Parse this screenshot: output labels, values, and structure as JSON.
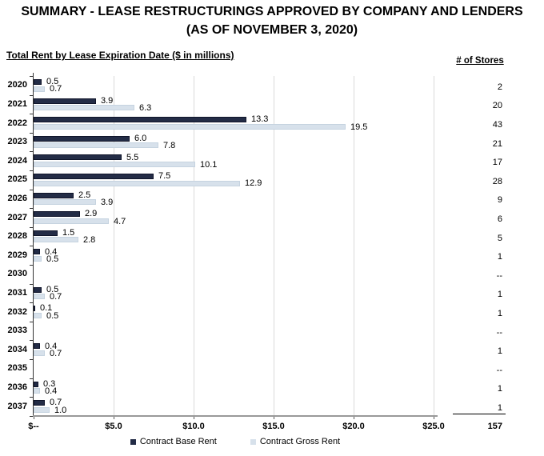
{
  "title": {
    "line1": "SUMMARY - LEASE RESTRUCTURINGS APPROVED BY COMPANY AND LENDERS",
    "line2": "(AS OF NOVEMBER 3, 2020)"
  },
  "chart_data": {
    "type": "bar",
    "orientation": "horizontal",
    "title": "Total Rent by Lease Expiration Date ($ in millions)",
    "stores_header": "# of Stores",
    "categories": [
      "2020",
      "2021",
      "2022",
      "2023",
      "2024",
      "2025",
      "2026",
      "2027",
      "2028",
      "2029",
      "2030",
      "2031",
      "2032",
      "2033",
      "2034",
      "2035",
      "2036",
      "2037"
    ],
    "series": [
      {
        "name": "Contract Base Rent",
        "color": "#232C46",
        "border_color": "#10152A",
        "values": [
          0.5,
          3.9,
          13.3,
          6.0,
          5.5,
          7.5,
          2.5,
          2.9,
          1.5,
          0.4,
          null,
          0.5,
          0.1,
          null,
          0.4,
          null,
          0.3,
          0.7
        ]
      },
      {
        "name": "Contract Gross Rent",
        "color": "#D7E1EB",
        "border_color": "#C6D3E0",
        "values": [
          0.7,
          6.3,
          19.5,
          7.8,
          10.1,
          12.9,
          3.9,
          4.7,
          2.8,
          0.5,
          null,
          0.7,
          0.5,
          null,
          0.7,
          null,
          0.4,
          1.0
        ]
      }
    ],
    "stores": [
      "2",
      "20",
      "43",
      "21",
      "17",
      "28",
      "9",
      "6",
      "5",
      "1",
      "--",
      "1",
      "1",
      "--",
      "1",
      "--",
      "1",
      "1"
    ],
    "stores_total": "157",
    "x_axis_ticks": [
      {
        "value": 0,
        "label": "$--"
      },
      {
        "value": 5,
        "label": "$5.0"
      },
      {
        "value": 10,
        "label": "$10.0"
      },
      {
        "value": 15,
        "label": "$15.0"
      },
      {
        "value": 20,
        "label": "$20.0"
      },
      {
        "value": 25,
        "label": "$25.0"
      }
    ],
    "xlim": [
      0,
      25
    ],
    "grid": true,
    "legend_position": "bottom",
    "colors": {
      "gridline": "#D9D9D9",
      "y_axis": "#333333",
      "x_axis_line": "#999999",
      "x_axis_tick": "#555555",
      "text": "#000000"
    }
  }
}
